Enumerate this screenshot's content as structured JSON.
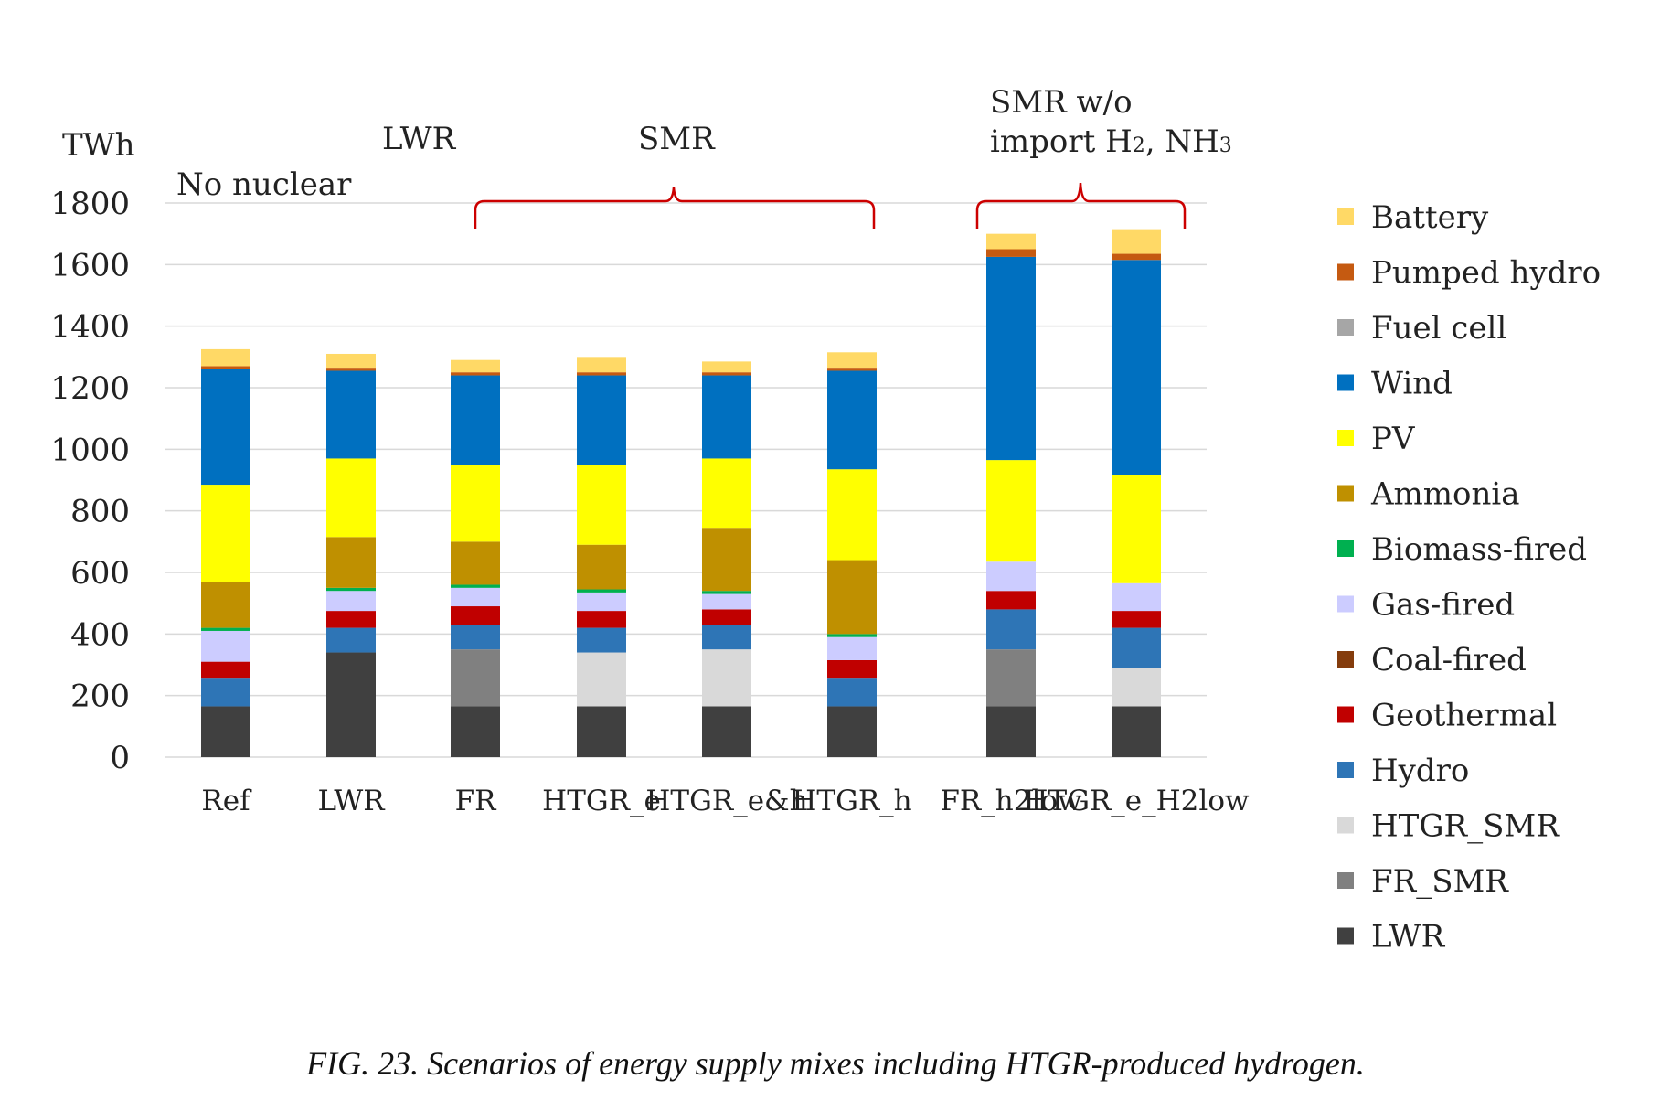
{
  "chart_data": {
    "type": "bar",
    "stacked": true,
    "ylabel": "TWh",
    "ylim": [
      0,
      1800
    ],
    "yticks": [
      0,
      200,
      400,
      600,
      800,
      1000,
      1200,
      1400,
      1600,
      1800
    ],
    "grid": true,
    "legend_position": "right",
    "categories": [
      "Ref",
      "LWR",
      "FR",
      "HTGR_e",
      "HTGR_e&h",
      "HTGR_h",
      "FR_h2low",
      "HTGR_e_H2low"
    ],
    "series": [
      {
        "name": "LWR",
        "color": "#404040",
        "values": [
          165,
          340,
          165,
          165,
          165,
          165,
          165,
          165
        ]
      },
      {
        "name": "FR_SMR",
        "color": "#808080",
        "values": [
          0,
          0,
          185,
          0,
          0,
          0,
          185,
          0
        ]
      },
      {
        "name": "HTGR_SMR",
        "color": "#d9d9d9",
        "values": [
          0,
          0,
          0,
          175,
          185,
          0,
          0,
          125
        ]
      },
      {
        "name": "Hydro",
        "color": "#2e75b6",
        "values": [
          90,
          80,
          80,
          80,
          80,
          90,
          130,
          130
        ]
      },
      {
        "name": "Geothermal",
        "color": "#c00000",
        "values": [
          55,
          55,
          60,
          55,
          50,
          60,
          60,
          55
        ]
      },
      {
        "name": "Coal-fired",
        "color": "#843c0c",
        "values": [
          0,
          0,
          0,
          0,
          0,
          0,
          0,
          0
        ]
      },
      {
        "name": "Gas-fired",
        "color": "#ccccff",
        "values": [
          100,
          65,
          60,
          60,
          50,
          75,
          95,
          90
        ]
      },
      {
        "name": "Biomass-fired",
        "color": "#00b050",
        "values": [
          10,
          10,
          10,
          10,
          10,
          10,
          0,
          0
        ]
      },
      {
        "name": "Ammonia",
        "color": "#bf9000",
        "values": [
          150,
          165,
          140,
          145,
          205,
          240,
          0,
          0
        ]
      },
      {
        "name": "PV",
        "color": "#ffff00",
        "values": [
          315,
          255,
          250,
          260,
          225,
          295,
          330,
          350
        ]
      },
      {
        "name": "Wind",
        "color": "#0070c0",
        "values": [
          375,
          285,
          290,
          290,
          270,
          320,
          660,
          700
        ]
      },
      {
        "name": "Fuel cell",
        "color": "#a6a6a6",
        "values": [
          0,
          0,
          0,
          0,
          0,
          0,
          0,
          0
        ]
      },
      {
        "name": "Pumped hydro",
        "color": "#c55a11",
        "values": [
          10,
          10,
          10,
          10,
          10,
          10,
          25,
          20
        ]
      },
      {
        "name": "Battery",
        "color": "#ffd966",
        "values": [
          55,
          45,
          40,
          50,
          35,
          50,
          50,
          80
        ]
      }
    ],
    "group_labels": {
      "no_nuclear": "No nuclear",
      "lwr": "LWR",
      "smr": "SMR",
      "smr_wo_line1": "SMR w/o",
      "smr_wo_line2_prefix": "import H",
      "smr_wo_line2_sub1": "2",
      "smr_wo_line2_mid": ", NH",
      "smr_wo_line2_sub2": "3"
    }
  },
  "caption": "FIG. 23. Scenarios of energy supply mixes including HTGR-produced hydrogen.",
  "bracket_color": "#cc0000"
}
